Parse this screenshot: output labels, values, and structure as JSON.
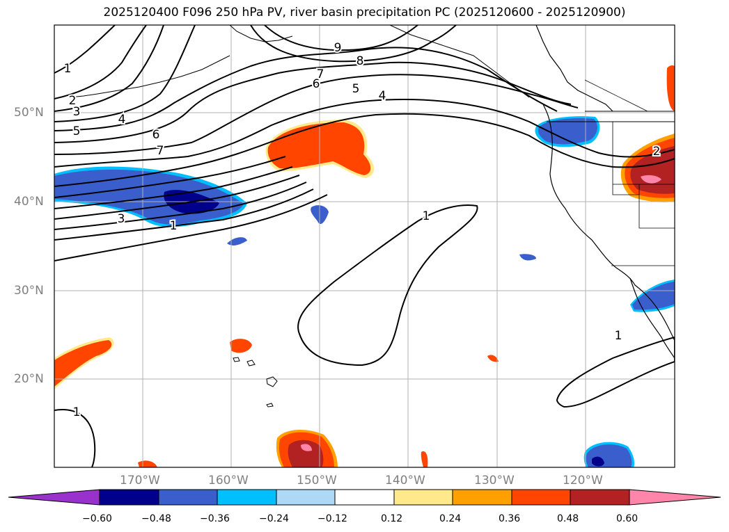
{
  "title": "2025120400 F096 250 hPa PV, river basin precipitation PC (2025120600 - 2025120900)",
  "lat_labels": [
    "50°N",
    "40°N",
    "30°N",
    "20°N"
  ],
  "lon_labels": [
    "170°W",
    "160°W",
    "150°W",
    "140°W",
    "130°W",
    "120°W"
  ],
  "contour_labels": [
    "1",
    "2",
    "3",
    "4",
    "5",
    "6",
    "7",
    "9",
    "8",
    "7",
    "6",
    "5",
    "4",
    "3",
    "1",
    "1",
    "1",
    "1",
    "2"
  ],
  "colorbar": {
    "ticks": [
      "−0.60",
      "−0.48",
      "−0.36",
      "−0.24",
      "−0.12",
      "0.12",
      "0.24",
      "0.36",
      "0.48",
      "0.60"
    ],
    "colors": [
      "#9932cc",
      "#00008b",
      "#3a5fcd",
      "#00bfff",
      "#add8f6",
      "#ffffff",
      "#ffe98a",
      "#ffa000",
      "#ff4500",
      "#b22222",
      "#ff85aa"
    ]
  },
  "fill_colors": {
    "neg_strong": "#00008b",
    "neg_mid": "#3a5fcd",
    "neg_light": "#00bfff",
    "pos_light": "#ffe98a",
    "pos_mid": "#ffa000",
    "pos_strong": "#ff4500",
    "pos_dark": "#b22222",
    "pos_max": "#ff85aa"
  }
}
